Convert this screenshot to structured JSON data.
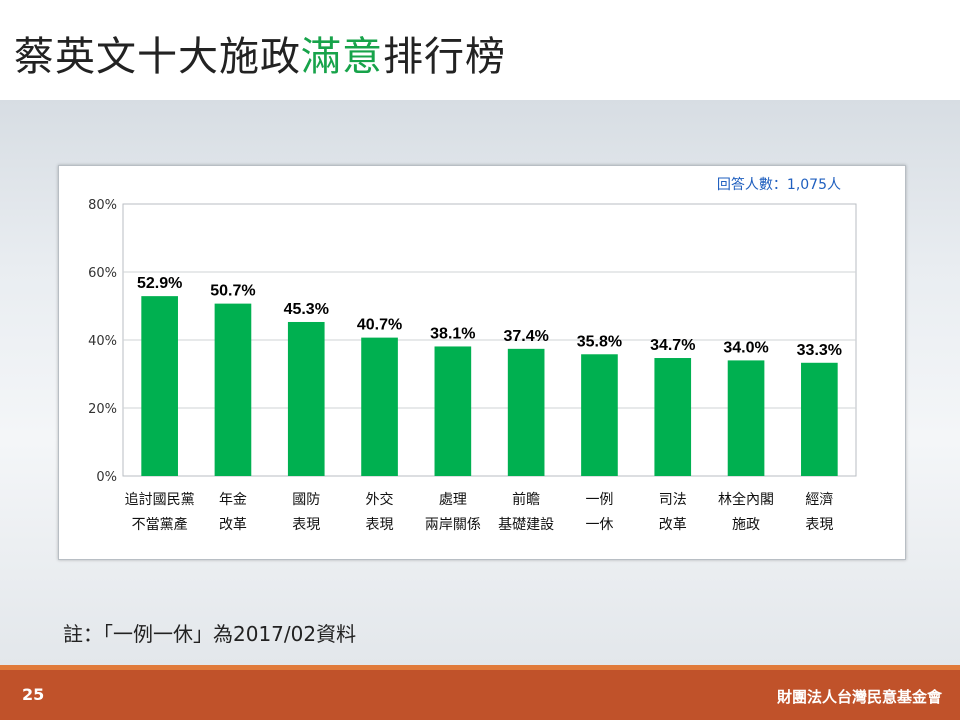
{
  "slide": {
    "title_part1": "蔡英文十大施政",
    "title_highlight": "滿意",
    "title_part2": "排行榜",
    "note": "註：「一例一休」為2017/02資料",
    "page_number": "25",
    "organization": "財團法人台灣民意基金會",
    "respondents": "回答人數：1,075人"
  },
  "colors": {
    "bar": "#00b050",
    "title_highlight": "#17a34a",
    "footer": "#c0522a",
    "respondents_text": "#1f5fbf"
  },
  "chart_data": {
    "type": "bar",
    "categories": [
      [
        "追討國民黨",
        "不當黨產"
      ],
      [
        "年金",
        "改革"
      ],
      [
        "國防",
        "表現"
      ],
      [
        "外交",
        "表現"
      ],
      [
        "處理",
        "兩岸關係"
      ],
      [
        "前瞻",
        "基礎建設"
      ],
      [
        "一例",
        "一休"
      ],
      [
        "司法",
        "改革"
      ],
      [
        "林全內閣",
        "施政"
      ],
      [
        "經濟",
        "表現"
      ]
    ],
    "values": [
      52.9,
      50.7,
      45.3,
      40.7,
      38.1,
      37.4,
      35.8,
      34.7,
      34.0,
      33.3
    ],
    "value_labels": [
      "52.9%",
      "50.7%",
      "45.3%",
      "40.7%",
      "38.1%",
      "37.4%",
      "35.8%",
      "34.7%",
      "34.0%",
      "33.3%"
    ],
    "y_ticks": [
      "0%",
      "20%",
      "40%",
      "60%",
      "80%"
    ],
    "ylim": [
      0,
      80
    ],
    "grid": true
  }
}
